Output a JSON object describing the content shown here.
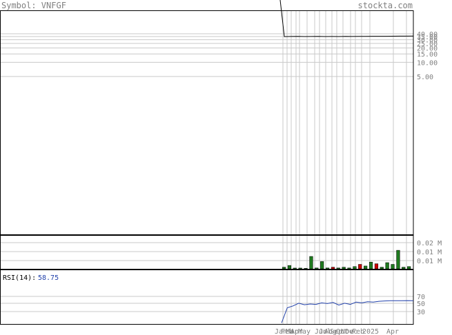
{
  "header": {
    "symbol_label": "Symbol: VNFGF",
    "site": "stockta.com"
  },
  "colors": {
    "up": "#1f7a1f",
    "down": "#cc0000",
    "rsi": "#1f3faa",
    "grid": "#c8c8c8",
    "frame": "#000000",
    "text": "#808080"
  },
  "chart_data": [
    {
      "type": "line",
      "panel": "price",
      "scale": "log",
      "ylim": [
        5,
        40
      ],
      "y_ticks": [
        {
          "v": 40,
          "label": "40.00"
        },
        {
          "v": 35,
          "label": "35.00"
        },
        {
          "v": 30,
          "label": "30.00"
        },
        {
          "v": 25,
          "label": "25.00"
        },
        {
          "v": 20,
          "label": "20.00"
        },
        {
          "v": 15,
          "label": "15.00"
        },
        {
          "v": 10,
          "label": "10.00"
        },
        {
          "v": 5,
          "label": "5.00"
        }
      ],
      "x_labels": [
        "Jan",
        "Feb",
        "Mar",
        "Apr",
        "May",
        "Jun",
        "Jul",
        "Aug",
        "Sep",
        "Oct",
        "Nov",
        "Dec",
        "Feb",
        "2025",
        "Apr"
      ],
      "series": [
        {
          "values": [
            34.9,
            35.1,
            35.2,
            35.0,
            35.1,
            35.2,
            35.0,
            35.1,
            35.0,
            35.2,
            35.1,
            35.3,
            35.2,
            35.4,
            35.5,
            35.5,
            35.6,
            35.7,
            35.7,
            35.8
          ]
        }
      ]
    },
    {
      "type": "bar",
      "panel": "volume",
      "y_ticks": [
        {
          "v": 0.02,
          "label": "0.02 M"
        },
        {
          "v": 0.01,
          "label": "0.01 M"
        },
        {
          "v": 0.005,
          "label": "0.01 M"
        }
      ],
      "ylim": [
        0,
        0.03
      ],
      "bars": [
        {
          "v": 0.0015,
          "dir": "up"
        },
        {
          "v": 0.003,
          "dir": "up"
        },
        {
          "v": 0.0007,
          "dir": "up"
        },
        {
          "v": 0.0007,
          "dir": "up"
        },
        {
          "v": 0.0005,
          "dir": "up"
        },
        {
          "v": 0.011,
          "dir": "up"
        },
        {
          "v": 0.0008,
          "dir": "up"
        },
        {
          "v": 0.0065,
          "dir": "up"
        },
        {
          "v": 0.0008,
          "dir": "up"
        },
        {
          "v": 0.0015,
          "dir": "down"
        },
        {
          "v": 0.0008,
          "dir": "up"
        },
        {
          "v": 0.0015,
          "dir": "up"
        },
        {
          "v": 0.0008,
          "dir": "up"
        },
        {
          "v": 0.002,
          "dir": "up"
        },
        {
          "v": 0.004,
          "dir": "down"
        },
        {
          "v": 0.0025,
          "dir": "up"
        },
        {
          "v": 0.006,
          "dir": "up"
        },
        {
          "v": 0.0045,
          "dir": "down"
        },
        {
          "v": 0.0015,
          "dir": "up"
        },
        {
          "v": 0.0055,
          "dir": "up"
        },
        {
          "v": 0.004,
          "dir": "up"
        },
        {
          "v": 0.0165,
          "dir": "up"
        },
        {
          "v": 0.0015,
          "dir": "up"
        },
        {
          "v": 0.002,
          "dir": "up"
        }
      ]
    },
    {
      "type": "line",
      "panel": "rsi",
      "label": "RSI(14):",
      "value_label": "58.75",
      "ylim": [
        0,
        100
      ],
      "y_ticks": [
        {
          "v": 70,
          "label": "70"
        },
        {
          "v": 50,
          "label": "50"
        },
        {
          "v": 30,
          "label": "30"
        }
      ],
      "series": [
        {
          "values": [
            0,
            40,
            45,
            52,
            48,
            50,
            49,
            53,
            51,
            54,
            47,
            52,
            49,
            55,
            53,
            56,
            55,
            57,
            58,
            58.5,
            58.8,
            58.75,
            59,
            58.75
          ]
        }
      ]
    }
  ]
}
